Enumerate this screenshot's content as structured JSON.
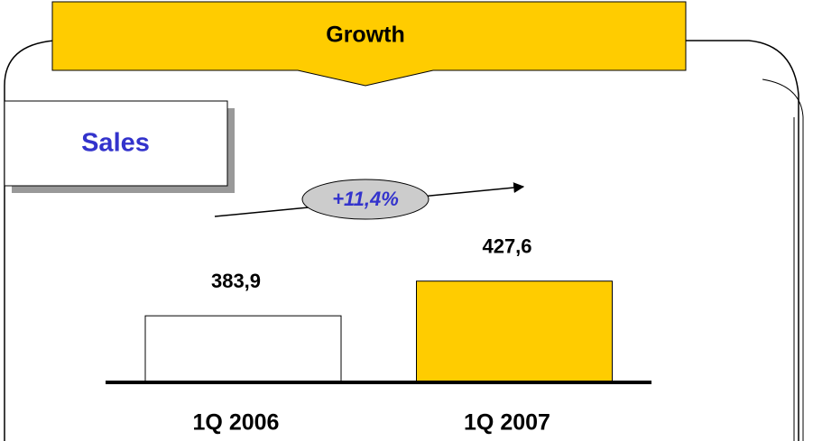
{
  "chart_data": {
    "type": "bar",
    "title": "Growth",
    "subtitle": "Sales",
    "categories": [
      "1Q 2006",
      "1Q 2007"
    ],
    "values": [
      383.9,
      427.6
    ],
    "value_labels": [
      "383,9",
      "427,6"
    ],
    "colors": [
      "#ffffff",
      "#ffcc00"
    ],
    "annotation": "+11,4%",
    "ylim": [
      300,
      450
    ]
  }
}
